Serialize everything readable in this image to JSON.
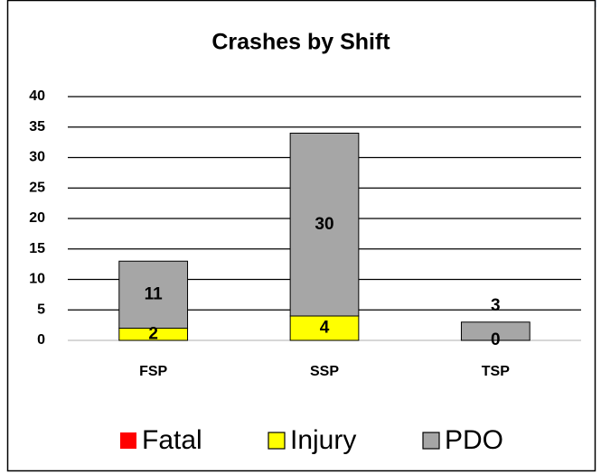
{
  "chart_data": {
    "type": "stacked_bar",
    "title": "Crashes by Shift",
    "categories": [
      "FSP",
      "SSP",
      "TSP"
    ],
    "series": [
      {
        "name": "Fatal",
        "color": "#ff0000",
        "values": [
          0,
          0,
          0
        ],
        "data_labels": false
      },
      {
        "name": "Injury",
        "color": "#ffff00",
        "values": [
          2,
          4,
          0
        ],
        "data_labels": true
      },
      {
        "name": "PDO",
        "color": "#a6a6a6",
        "values": [
          11,
          30,
          3
        ],
        "data_labels": true
      }
    ],
    "ylim": [
      0,
      40
    ],
    "yticks": [
      0,
      5,
      10,
      15,
      20,
      25,
      30,
      35,
      40
    ],
    "grid": true,
    "legend": "bottom"
  }
}
